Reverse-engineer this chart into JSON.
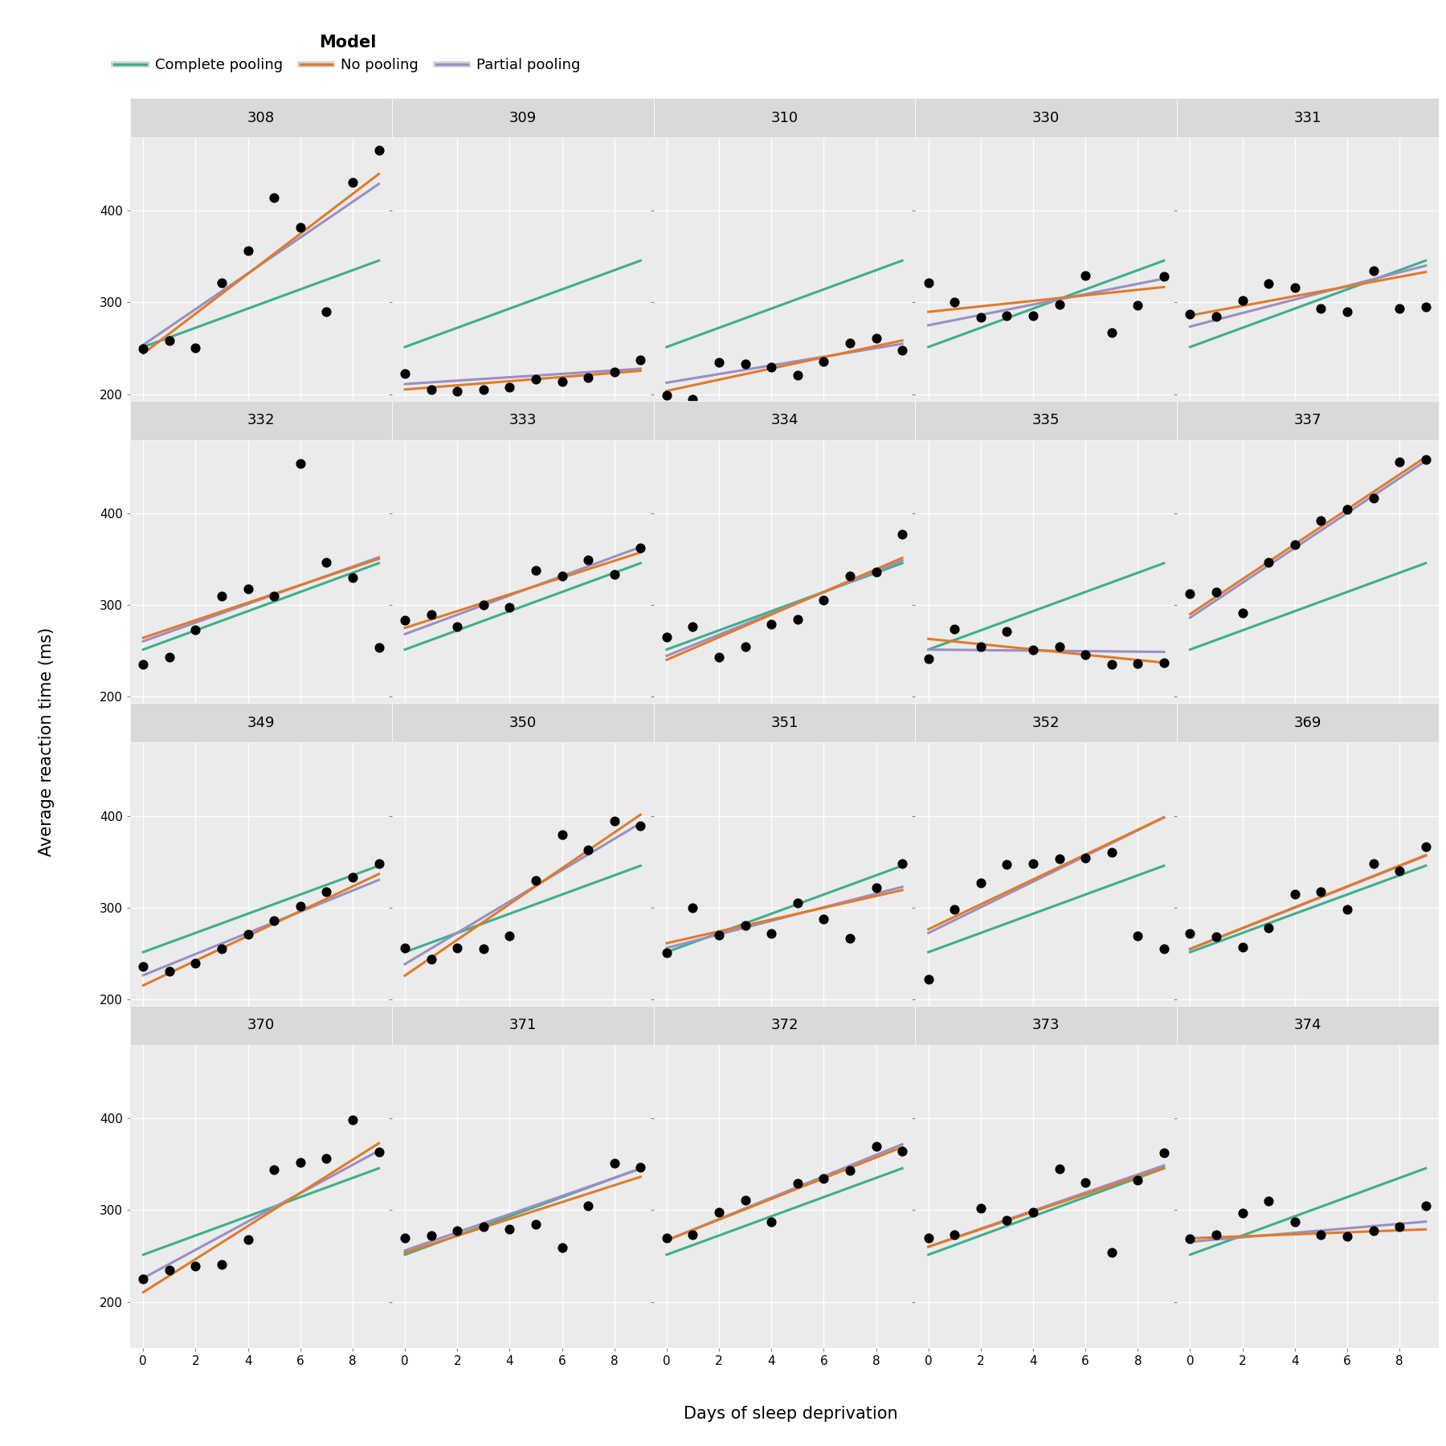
{
  "subjects": [
    "308",
    "309",
    "310",
    "330",
    "331",
    "332",
    "333",
    "334",
    "335",
    "337",
    "349",
    "350",
    "351",
    "352",
    "369",
    "370",
    "371",
    "372",
    "373",
    "374"
  ],
  "days": [
    0,
    1,
    2,
    3,
    4,
    5,
    6,
    7,
    8,
    9
  ],
  "reaction_data": {
    "308": [
      249.56,
      258.7047,
      250.8006,
      321.4398,
      356.8519,
      414.6901,
      382.2038,
      290.1486,
      430.5853,
      466.3535
    ],
    "309": [
      222.7339,
      205.2658,
      202.9778,
      204.707,
      207.7161,
      215.9618,
      213.6303,
      217.7272,
      224.2957,
      237.3142
    ],
    "310": [
      199.0539,
      194.3322,
      234.3299,
      232.8416,
      229.3074,
      220.4579,
      235.4208,
      255.7511,
      261.0125,
      247.5153
    ],
    "330": [
      321.5426,
      300.4002,
      283.8565,
      285.133,
      285.7973,
      297.5855,
      329.6714,
      267.501,
      296.5755,
      328.7622
    ],
    "331": [
      287.6079,
      285.0,
      301.8206,
      320.1153,
      316.2773,
      293.3187,
      290.075,
      334.8177,
      293.7469,
      295.2442
    ],
    "332": [
      234.8606,
      242.8118,
      272.9613,
      309.7688,
      317.4629,
      309.9976,
      454.159,
      346.8311,
      330.3003,
      253.8644
    ],
    "333": [
      283.8424,
      289.555,
      276.7693,
      299.8097,
      297.171,
      338.1665,
      332.0265,
      348.8399,
      333.36,
      362.0428
    ],
    "334": [
      265.4731,
      276.2012,
      243.3647,
      254.6723,
      279.0244,
      284.1339,
      305.5975,
      331.5699,
      335.7469,
      377.299
    ],
    "335": [
      241.6083,
      273.9472,
      254.4907,
      270.8021,
      251.4519,
      254.6362,
      245.4523,
      235.311,
      235.7541,
      237.2466
    ],
    "337": [
      312.3666,
      313.8058,
      291.1321,
      346.1222,
      365.7324,
      391.8385,
      404.2601,
      416.6923,
      455.8643,
      458.9167
    ],
    "349": [
      236.1032,
      230.3167,
      238.9256,
      254.922,
      270.4915,
      286.061,
      301.6305,
      317.2,
      332.7695,
      348.339
    ],
    "350": [
      256.2968,
      243.4543,
      256.2046,
      255.5271,
      268.9165,
      329.7247,
      379.4445,
      362.9184,
      394.4872,
      389.0527
    ],
    "351": [
      250.5765,
      300.0933,
      269.8181,
      280.5559,
      271.8021,
      304.6588,
      287.7503,
      266.5955,
      321.5418,
      347.5655
    ],
    "352": [
      221.6771,
      298.1939,
      326.8785,
      346.8555,
      348.3488,
      352.8741,
      354.4239,
      360.4998,
      269.4117,
      254.9658
    ],
    "369": [
      271.9235,
      268.4369,
      257.2424,
      277.6566,
      314.8222,
      317.2135,
      298.1353,
      348.1229,
      340.28,
      366.5131
    ],
    "370": [
      225.264,
      234.5235,
      238.9008,
      240.473,
      267.5373,
      344.1937,
      351.6316,
      356.0549,
      398.3581,
      363.5547
    ],
    "371": [
      269.8804,
      272.4428,
      277.8989,
      281.7895,
      279.1705,
      284.512,
      259.2658,
      304.6306,
      350.7807,
      346.8295
    ],
    "372": [
      269.4117,
      273.474,
      297.597,
      310.6074,
      287.1726,
      329.6076,
      334.4818,
      343.2199,
      369.1417,
      364.1236
    ],
    "373": [
      269.8152,
      273.62,
      302.3185,
      289.0651,
      297.5855,
      344.8311,
      330.3003,
      253.8644,
      332.9668,
      362.539
    ],
    "374": [
      269.0,
      273.0,
      297.0,
      310.0,
      287.0,
      273.5,
      271.5,
      278.0,
      282.0,
      305.0
    ]
  },
  "complete_pooling": {
    "intercept": 251.405,
    "slope": 10.467
  },
  "no_pooling": {
    "308": {
      "intercept": 244.193,
      "slope": 21.765
    },
    "309": {
      "intercept": 205.055,
      "slope": 2.262
    },
    "310": {
      "intercept": 203.484,
      "slope": 6.115
    },
    "330": {
      "intercept": 289.685,
      "slope": 3.008
    },
    "331": {
      "intercept": 285.739,
      "slope": 5.266
    },
    "332": {
      "intercept": 264.252,
      "slope": 9.566
    },
    "333": {
      "intercept": 275.02,
      "slope": 9.142
    },
    "334": {
      "intercept": 240.163,
      "slope": 12.353
    },
    "335": {
      "intercept": 263.035,
      "slope": -2.881
    },
    "337": {
      "intercept": 290.104,
      "slope": 19.026
    },
    "349": {
      "intercept": 215.112,
      "slope": 13.493
    },
    "350": {
      "intercept": 225.835,
      "slope": 19.502
    },
    "351": {
      "intercept": 261.147,
      "slope": 6.433
    },
    "352": {
      "intercept": 276.372,
      "slope": 13.566
    },
    "369": {
      "intercept": 254.968,
      "slope": 11.351
    },
    "370": {
      "intercept": 210.449,
      "slope": 18.056
    },
    "371": {
      "intercept": 253.636,
      "slope": 9.188
    },
    "372": {
      "intercept": 267.045,
      "slope": 11.298
    },
    "373": {
      "intercept": 260.053,
      "slope": 9.562
    },
    "374": {
      "intercept": 269.3,
      "slope": 1.084
    }
  },
  "partial_pooling": {
    "308": {
      "intercept": 253.663,
      "slope": 19.503
    },
    "309": {
      "intercept": 211.006,
      "slope": 1.848
    },
    "310": {
      "intercept": 212.445,
      "slope": 4.716
    },
    "330": {
      "intercept": 275.098,
      "slope": 5.647
    },
    "331": {
      "intercept": 273.665,
      "slope": 7.38
    },
    "332": {
      "intercept": 260.445,
      "slope": 10.175
    },
    "333": {
      "intercept": 268.243,
      "slope": 10.556
    },
    "334": {
      "intercept": 244.532,
      "slope": 11.545
    },
    "335": {
      "intercept": 251.348,
      "slope": -0.279
    },
    "337": {
      "intercept": 286.234,
      "slope": 19.002
    },
    "349": {
      "intercept": 226.195,
      "slope": 11.545
    },
    "350": {
      "intercept": 238.333,
      "slope": 17.079
    },
    "351": {
      "intercept": 255.969,
      "slope": 7.397
    },
    "352": {
      "intercept": 272.264,
      "slope": 14.003
    },
    "369": {
      "intercept": 254.684,
      "slope": 11.309
    },
    "370": {
      "intercept": 225.835,
      "slope": 15.444
    },
    "371": {
      "intercept": 255.964,
      "slope": 9.91
    },
    "372": {
      "intercept": 267.045,
      "slope": 11.643
    },
    "373": {
      "intercept": 259.998,
      "slope": 9.857
    },
    "374": {
      "intercept": 265.517,
      "slope": 2.439
    }
  },
  "color_complete": "#3EAE8E",
  "color_no_pooling": "#E07B2A",
  "color_partial": "#9B8EC4",
  "panel_bg": "#EBEBEB",
  "grid_color": "#FFFFFF",
  "strip_bg": "#D9D9D9",
  "ylabel": "Average reaction time (ms)",
  "xlabel": "Days of sleep deprivation",
  "ylim": [
    150,
    480
  ],
  "yticks": [
    200,
    300,
    400
  ],
  "xticks": [
    0,
    2,
    4,
    6,
    8
  ],
  "legend_title": "Model",
  "ncols": 5,
  "nrows": 4
}
